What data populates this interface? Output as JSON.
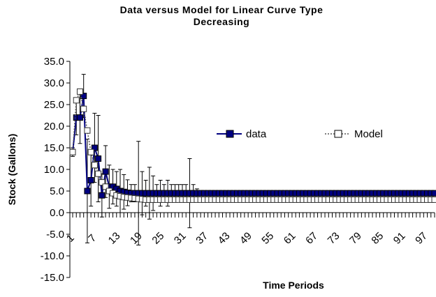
{
  "chart_data": {
    "type": "line",
    "title": "Data versus Model for Linear Curve Type Decreasing",
    "x_label": "Time Periods",
    "y_label": "Stock (Gallons)",
    "categories": [
      1,
      null,
      null,
      null,
      null,
      null,
      7,
      null,
      null,
      null,
      null,
      null,
      13,
      null,
      null,
      null,
      null,
      null,
      19,
      null,
      null,
      null,
      null,
      null,
      25,
      null,
      null,
      null,
      null,
      null,
      31,
      null,
      null,
      null,
      null,
      null,
      37,
      null,
      null,
      null,
      null,
      null,
      43,
      null,
      null,
      null,
      null,
      null,
      49,
      null,
      null,
      null,
      null,
      null,
      55,
      null,
      null,
      null,
      null,
      null,
      61,
      null,
      null,
      null,
      null,
      null,
      67,
      null,
      null,
      null,
      null,
      null,
      73,
      null,
      null,
      null,
      null,
      null,
      79,
      null,
      null,
      null,
      null,
      null,
      85,
      null,
      null,
      null,
      null,
      null,
      91,
      null,
      null,
      null,
      null,
      null,
      97,
      null,
      null,
      null
    ],
    "series": [
      {
        "name": "data",
        "color": "#000080",
        "values": [
          14,
          22,
          22,
          27,
          5,
          7.5,
          15,
          12.5,
          4,
          9.5,
          6,
          6,
          5.5,
          5,
          4.8,
          4.6,
          4.5,
          4.5,
          4.5,
          4.5,
          4.5,
          4.5,
          4.5,
          4.5,
          4.5,
          4.5,
          4.5,
          4.5,
          4.5,
          4.5,
          4.5,
          4.5,
          4.5,
          4.5,
          4.5,
          4.5,
          4.5,
          4.5,
          4.5,
          4.5,
          4.5,
          4.5,
          4.5,
          4.5,
          4.5,
          4.5,
          4.5,
          4.5,
          4.5,
          4.5,
          4.5,
          4.5,
          4.5,
          4.5,
          4.5,
          4.5,
          4.5,
          4.5,
          4.5,
          4.5,
          4.5,
          4.5,
          4.5,
          4.5,
          4.5,
          4.5,
          4.5,
          4.5,
          4.5,
          4.5,
          4.5,
          4.5,
          4.5,
          4.5,
          4.5,
          4.5,
          4.5,
          4.5,
          4.5,
          4.5,
          4.5,
          4.5,
          4.5,
          4.5,
          4.5,
          4.5,
          4.5,
          4.5,
          4.5,
          4.5,
          4.5,
          4.5,
          4.5,
          4.5,
          4.5,
          4.5,
          4.5,
          4.5,
          4.5,
          4.5
        ],
        "errors": [
          1,
          4,
          6,
          5,
          12,
          6,
          8,
          10,
          5,
          6,
          5,
          4,
          4,
          5,
          4,
          3,
          2,
          2,
          12,
          5,
          3,
          6,
          4,
          2,
          3,
          2,
          3,
          2,
          2,
          2,
          2,
          2,
          8,
          2,
          1,
          0,
          0,
          0,
          0,
          0,
          0,
          0,
          0,
          0,
          0,
          0,
          0,
          0,
          0,
          0,
          0,
          0,
          0,
          0,
          0,
          0,
          0,
          0,
          0,
          0,
          0,
          0,
          0,
          0,
          0,
          0,
          0,
          0,
          0,
          0,
          0,
          0,
          0,
          0,
          0,
          0,
          0,
          0,
          0,
          0,
          0,
          0,
          0,
          0,
          0,
          0,
          0,
          0,
          0,
          0,
          0,
          0,
          0,
          0,
          0,
          0,
          0,
          0,
          0,
          0
        ]
      },
      {
        "name": "Model",
        "color": "#555555",
        "values": [
          14,
          26,
          28,
          24,
          19,
          14,
          11,
          9,
          7,
          6,
          5,
          4.5,
          4,
          3.8,
          3.6,
          3.5,
          3.4,
          3.3,
          3.2,
          3.1,
          3,
          3,
          3,
          3,
          3,
          3,
          3,
          3,
          3,
          3,
          3,
          3,
          3,
          3,
          3,
          3,
          3,
          3,
          3,
          3,
          3,
          3,
          3,
          3,
          3,
          3,
          3,
          3,
          3,
          3,
          3,
          3,
          3,
          3,
          3,
          3,
          3,
          3,
          3,
          3,
          3,
          3,
          3,
          3,
          3,
          3,
          3,
          3,
          3,
          3,
          3,
          3,
          3,
          3,
          3,
          3,
          3,
          3,
          3,
          3,
          3,
          3,
          3,
          3,
          3,
          3,
          3,
          3,
          3,
          3,
          3,
          3,
          3,
          3,
          3,
          3,
          3,
          3,
          3,
          3
        ]
      }
    ],
    "ylim": [
      -15,
      35
    ],
    "yticks": [
      {
        "value": -15,
        "label": "-15.0"
      },
      {
        "value": -10,
        "label": "-10.0"
      },
      {
        "value": -5,
        "label": "-5.0"
      },
      {
        "value": 0,
        "label": "0.0"
      },
      {
        "value": 5,
        "label": "5.0"
      },
      {
        "value": 10,
        "label": "10.0"
      },
      {
        "value": 15,
        "label": "15.0"
      },
      {
        "value": 20,
        "label": "20.0"
      },
      {
        "value": 25,
        "label": "25.0"
      },
      {
        "value": 30,
        "label": "30.0"
      },
      {
        "value": 35,
        "label": "35.0"
      }
    ],
    "grid": false,
    "legend": "right"
  }
}
